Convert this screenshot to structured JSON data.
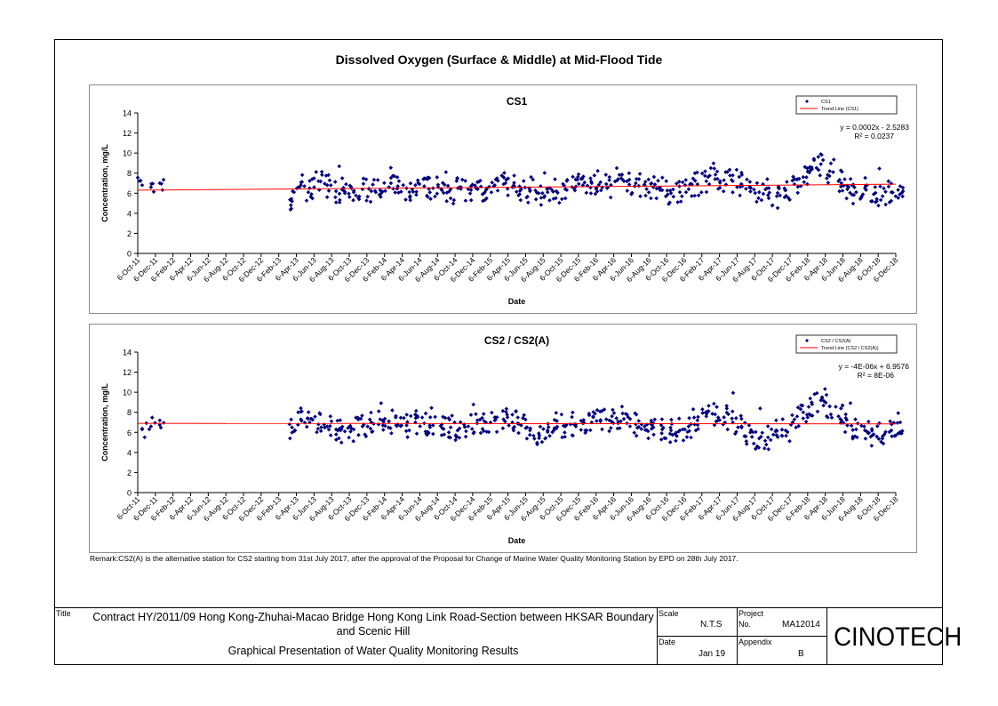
{
  "title": "Dissolved Oxygen (Surface & Middle) at Mid-Flood Tide",
  "chart_data": [
    {
      "type": "scatter",
      "title": "CS1",
      "xlabel": "Date",
      "ylabel": "Concentration, mg/L",
      "ylim": [
        0,
        14
      ],
      "yticks": [
        "0",
        "2",
        "4",
        "6",
        "8",
        "10",
        "12",
        "14"
      ],
      "x_tick_labels": [
        "6-Oct-11",
        "6-Dec-11",
        "6-Feb-12",
        "6-Apr-12",
        "6-Jun-12",
        "6-Aug-12",
        "6-Oct-12",
        "6-Dec-12",
        "6-Feb-13",
        "6-Apr-13",
        "6-Jun-13",
        "6-Aug-13",
        "6-Oct-13",
        "6-Dec-13",
        "6-Feb-14",
        "6-Apr-14",
        "6-Jun-14",
        "6-Aug-14",
        "6-Oct-14",
        "6-Dec-14",
        "6-Feb-15",
        "6-Apr-15",
        "6-Jun-15",
        "6-Aug-15",
        "6-Oct-15",
        "6-Dec-15",
        "6-Feb-16",
        "6-Apr-16",
        "6-Jun-16",
        "6-Aug-16",
        "6-Oct-16",
        "6-Dec-16",
        "6-Feb-17",
        "6-Apr-17",
        "6-Jun-17",
        "6-Aug-17",
        "6-Oct-17",
        "6-Dec-17",
        "6-Feb-18",
        "6-Apr-18",
        "6-Jun-18",
        "6-Aug-18",
        "6-Oct-18",
        "6-Dec-18"
      ],
      "series": [
        {
          "name": "CS1",
          "color": "#00007f",
          "marker": "diamond",
          "x": [
            "2011-10",
            "2011-11",
            "2011-12",
            "2013-03",
            "2013-04",
            "2013-05",
            "2013-06",
            "2013-07",
            "2013-08",
            "2013-09",
            "2013-10",
            "2013-11",
            "2013-12",
            "2014-01",
            "2014-02",
            "2014-03",
            "2014-04",
            "2014-05",
            "2014-06",
            "2014-07",
            "2014-08",
            "2014-09",
            "2014-10",
            "2014-11",
            "2014-12",
            "2015-01",
            "2015-02",
            "2015-03",
            "2015-04",
            "2015-05",
            "2015-06",
            "2015-07",
            "2015-08",
            "2015-09",
            "2015-10",
            "2015-11",
            "2015-12",
            "2016-01",
            "2016-02",
            "2016-03",
            "2016-04",
            "2016-05",
            "2016-06",
            "2016-07",
            "2016-08",
            "2016-09",
            "2016-10",
            "2016-11",
            "2016-12",
            "2017-01",
            "2017-02",
            "2017-03",
            "2017-04",
            "2017-05",
            "2017-06",
            "2017-07",
            "2017-08",
            "2017-09",
            "2017-10",
            "2017-11",
            "2017-12",
            "2018-01",
            "2018-02",
            "2018-03",
            "2018-04",
            "2018-05",
            "2018-06",
            "2018-07",
            "2018-08",
            "2018-09",
            "2018-10",
            "2018-11",
            "2018-12"
          ],
          "y": [
            6.8,
            6.6,
            7.0,
            5.2,
            6.8,
            6.5,
            7.2,
            6.8,
            6.2,
            6.0,
            6.1,
            6.4,
            6.2,
            6.3,
            6.6,
            6.7,
            6.5,
            6.8,
            6.7,
            6.5,
            6.3,
            6.4,
            6.6,
            6.4,
            6.5,
            6.3,
            6.8,
            6.9,
            6.6,
            6.4,
            6.2,
            6.0,
            6.1,
            6.2,
            6.4,
            6.5,
            6.8,
            7.0,
            7.1,
            7.3,
            7.4,
            7.2,
            7.0,
            6.8,
            6.6,
            6.3,
            6.0,
            6.1,
            6.4,
            6.9,
            7.2,
            7.4,
            7.3,
            7.2,
            6.9,
            6.6,
            6.1,
            5.8,
            5.7,
            6.3,
            6.9,
            7.6,
            8.4,
            8.9,
            8.2,
            7.2,
            6.4,
            6.1,
            6.5,
            5.9,
            5.7,
            6.1,
            6.7
          ]
        }
      ],
      "trend_line": {
        "name": "Trend Line (CS1)",
        "color": "#ff0000",
        "y_start": 6.3,
        "y_end": 6.9
      },
      "annotation": [
        "y = 0.0002x - 2.5283",
        "R² = 0.0237"
      ],
      "legend_position": "top-right"
    },
    {
      "type": "scatter",
      "title": "CS2 / CS2(A)",
      "xlabel": "Date",
      "ylabel": "Concentration, mg/L",
      "ylim": [
        0,
        14
      ],
      "yticks": [
        "0",
        "2",
        "4",
        "6",
        "8",
        "10",
        "12",
        "14"
      ],
      "x_tick_labels": [
        "6-Oct-11",
        "6-Dec-11",
        "6-Feb-12",
        "6-Apr-12",
        "6-Jun-12",
        "6-Aug-12",
        "6-Oct-12",
        "6-Dec-12",
        "6-Feb-13",
        "6-Apr-13",
        "6-Jun-13",
        "6-Aug-13",
        "6-Oct-13",
        "6-Dec-13",
        "6-Feb-14",
        "6-Apr-14",
        "6-Jun-14",
        "6-Aug-14",
        "6-Oct-14",
        "6-Dec-14",
        "6-Feb-15",
        "6-Apr-15",
        "6-Jun-15",
        "6-Aug-15",
        "6-Oct-15",
        "6-Dec-15",
        "6-Feb-16",
        "6-Apr-16",
        "6-Jun-16",
        "6-Aug-16",
        "6-Oct-16",
        "6-Dec-16",
        "6-Feb-17",
        "6-Apr-17",
        "6-Jun-17",
        "6-Aug-17",
        "6-Oct-17",
        "6-Dec-17",
        "6-Feb-18",
        "6-Apr-18",
        "6-Jun-18",
        "6-Aug-18",
        "6-Oct-18",
        "6-Dec-18"
      ],
      "series": [
        {
          "name": "CS2 / CS2(A)",
          "color": "#00007f",
          "marker": "diamond",
          "x": [
            "2011-10",
            "2011-11",
            "2011-12",
            "2013-03",
            "2013-04",
            "2013-05",
            "2013-06",
            "2013-07",
            "2013-08",
            "2013-09",
            "2013-10",
            "2013-11",
            "2013-12",
            "2014-01",
            "2014-02",
            "2014-03",
            "2014-04",
            "2014-05",
            "2014-06",
            "2014-07",
            "2014-08",
            "2014-09",
            "2014-10",
            "2014-11",
            "2014-12",
            "2015-01",
            "2015-02",
            "2015-03",
            "2015-04",
            "2015-05",
            "2015-06",
            "2015-07",
            "2015-08",
            "2015-09",
            "2015-10",
            "2015-11",
            "2015-12",
            "2016-01",
            "2016-02",
            "2016-03",
            "2016-04",
            "2016-05",
            "2016-06",
            "2016-07",
            "2016-08",
            "2016-09",
            "2016-10",
            "2016-11",
            "2016-12",
            "2017-01",
            "2017-02",
            "2017-03",
            "2017-04",
            "2017-05",
            "2017-06",
            "2017-07",
            "2017-08",
            "2017-09",
            "2017-10",
            "2017-11",
            "2017-12",
            "2018-01",
            "2018-02",
            "2018-03",
            "2018-04",
            "2018-05",
            "2018-06",
            "2018-07",
            "2018-08",
            "2018-09",
            "2018-10",
            "2018-11",
            "2018-12"
          ],
          "y": [
            6.3,
            6.6,
            7.2,
            6.5,
            7.3,
            7.0,
            6.8,
            6.6,
            6.3,
            6.1,
            6.3,
            6.6,
            7.0,
            7.3,
            7.1,
            6.8,
            6.7,
            7.0,
            6.9,
            6.7,
            6.8,
            6.5,
            6.4,
            6.6,
            6.9,
            7.0,
            7.2,
            7.3,
            7.0,
            6.7,
            6.2,
            5.9,
            6.2,
            6.4,
            6.6,
            6.8,
            6.9,
            7.0,
            7.1,
            7.2,
            7.1,
            6.9,
            6.8,
            6.6,
            6.5,
            6.3,
            6.2,
            6.2,
            6.6,
            7.2,
            7.6,
            7.8,
            7.5,
            7.0,
            6.6,
            6.0,
            5.4,
            5.5,
            5.7,
            6.2,
            7.3,
            8.0,
            8.8,
            9.2,
            8.6,
            7.6,
            6.7,
            6.3,
            6.2,
            5.8,
            5.6,
            6.2,
            7.0
          ]
        }
      ],
      "trend_line": {
        "name": "Trend Line (CS2 / CS2(A))",
        "color": "#ff0000",
        "y_start": 6.9,
        "y_end": 6.85
      },
      "annotation": [
        "y = -4E-06x + 6.9576",
        "R² = 8E-06"
      ],
      "legend_position": "top-right"
    }
  ],
  "remark": "Remark:CS2(A) is the alternative station for CS2 starting from 31st July 2017, after the approval of the Proposal for Change of Marine Water Quality Monitoring Station by EPD on 28th July 2017.",
  "title_block": {
    "title_label": "Title",
    "contract": "Contract HY/2011/09 Hong Kong-Zhuhai-Macao Bridge Hong Kong Link Road-Section between HKSAR Boundary and Scenic Hill",
    "subtitle": "Graphical Presentation of Water Quality Monitoring Results",
    "scale_label": "Scale",
    "scale_value": "N.T.S",
    "project_label": "Project",
    "no_label": "No.",
    "project_no": "MA12014",
    "date_label": "Date",
    "date_value": "Jan 19",
    "appendix_label": "Appendix",
    "appendix_value": "B",
    "logo": "CINOTECH"
  }
}
